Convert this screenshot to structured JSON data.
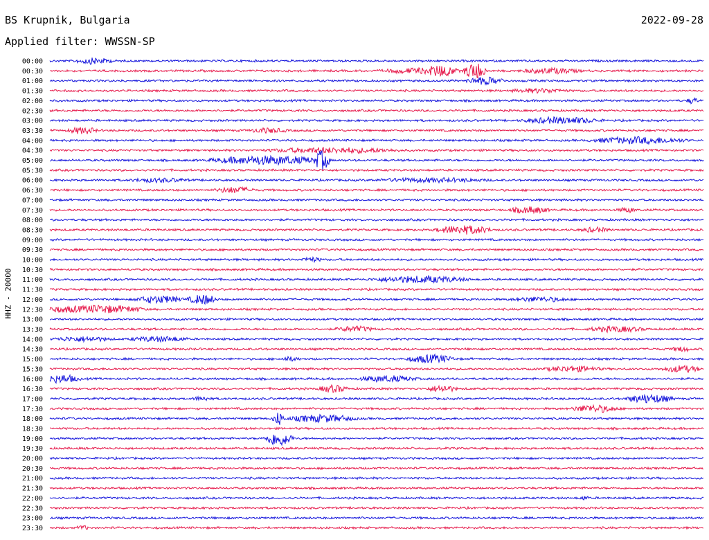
{
  "header": {
    "station": "BS Krupnik, Bulgaria",
    "date": "2022-09-28",
    "filter": "Applied filter: WWSSN-SP"
  },
  "chart_data": {
    "type": "line",
    "ylabel": "HHZ - 20000",
    "row_labels": [
      "00:00",
      "00:30",
      "01:00",
      "01:30",
      "02:00",
      "02:30",
      "03:00",
      "03:30",
      "04:00",
      "04:30",
      "05:00",
      "05:30",
      "06:00",
      "06:30",
      "07:00",
      "07:30",
      "08:00",
      "08:30",
      "09:00",
      "09:30",
      "10:00",
      "10:30",
      "11:00",
      "11:30",
      "12:00",
      "12:30",
      "13:00",
      "13:30",
      "14:00",
      "14:30",
      "15:00",
      "15:30",
      "16:00",
      "16:30",
      "17:00",
      "17:30",
      "18:00",
      "18:30",
      "19:00",
      "19:30",
      "20:00",
      "20:30",
      "21:00",
      "21:30",
      "22:00",
      "22:30",
      "23:00",
      "23:30"
    ],
    "colors": {
      "even": "#1414dc",
      "odd": "#e6194b"
    },
    "events": [
      {
        "row": 0,
        "minute": 2,
        "amp": 0.4,
        "dur": 2
      },
      {
        "row": 1,
        "minute": 17,
        "amp": 0.35,
        "dur": 4
      },
      {
        "row": 1,
        "minute": 18,
        "amp": 0.6,
        "dur": 1.5
      },
      {
        "row": 1,
        "minute": 19.5,
        "amp": 1.2,
        "dur": 1.2
      },
      {
        "row": 1,
        "minute": 23,
        "amp": 0.35,
        "dur": 3
      },
      {
        "row": 2,
        "minute": 20,
        "amp": 0.5,
        "dur": 2
      },
      {
        "row": 3,
        "minute": 22.5,
        "amp": 0.25,
        "dur": 3
      },
      {
        "row": 4,
        "minute": 29.5,
        "amp": 0.4,
        "dur": 0.6
      },
      {
        "row": 6,
        "minute": 23.5,
        "amp": 0.45,
        "dur": 4
      },
      {
        "row": 7,
        "minute": 1.5,
        "amp": 0.45,
        "dur": 1.5
      },
      {
        "row": 7,
        "minute": 10,
        "amp": 0.3,
        "dur": 2
      },
      {
        "row": 8,
        "minute": 27,
        "amp": 0.45,
        "dur": 5
      },
      {
        "row": 9,
        "minute": 13,
        "amp": 0.35,
        "dur": 7
      },
      {
        "row": 10,
        "minute": 10,
        "amp": 0.6,
        "dur": 6
      },
      {
        "row": 10,
        "minute": 12.5,
        "amp": 1.3,
        "dur": 0.8
      },
      {
        "row": 12,
        "minute": 5,
        "amp": 0.25,
        "dur": 3
      },
      {
        "row": 12,
        "minute": 17.5,
        "amp": 0.25,
        "dur": 6
      },
      {
        "row": 13,
        "minute": 8.5,
        "amp": 0.4,
        "dur": 2
      },
      {
        "row": 15,
        "minute": 22,
        "amp": 0.45,
        "dur": 2
      },
      {
        "row": 15,
        "minute": 26.5,
        "amp": 0.3,
        "dur": 1
      },
      {
        "row": 17,
        "minute": 19,
        "amp": 0.6,
        "dur": 3
      },
      {
        "row": 17,
        "minute": 25,
        "amp": 0.3,
        "dur": 1.5
      },
      {
        "row": 20,
        "minute": 12,
        "amp": 0.3,
        "dur": 1
      },
      {
        "row": 22,
        "minute": 17,
        "amp": 0.45,
        "dur": 5
      },
      {
        "row": 24,
        "minute": 5,
        "amp": 0.5,
        "dur": 2.5
      },
      {
        "row": 24,
        "minute": 7,
        "amp": 0.7,
        "dur": 1.5
      },
      {
        "row": 24,
        "minute": 22.5,
        "amp": 0.3,
        "dur": 3
      },
      {
        "row": 25,
        "minute": 1,
        "amp": 0.4,
        "dur": 4
      },
      {
        "row": 25,
        "minute": 3,
        "amp": 0.45,
        "dur": 3
      },
      {
        "row": 27,
        "minute": 14,
        "amp": 0.35,
        "dur": 2
      },
      {
        "row": 27,
        "minute": 26,
        "amp": 0.35,
        "dur": 3
      },
      {
        "row": 28,
        "minute": 1.5,
        "amp": 0.3,
        "dur": 3
      },
      {
        "row": 28,
        "minute": 5,
        "amp": 0.35,
        "dur": 3
      },
      {
        "row": 29,
        "minute": 29,
        "amp": 0.3,
        "dur": 1
      },
      {
        "row": 30,
        "minute": 11,
        "amp": 0.25,
        "dur": 1
      },
      {
        "row": 30,
        "minute": 17.5,
        "amp": 0.55,
        "dur": 2.5
      },
      {
        "row": 31,
        "minute": 24,
        "amp": 0.35,
        "dur": 3
      },
      {
        "row": 31,
        "minute": 29,
        "amp": 0.45,
        "dur": 2
      },
      {
        "row": 32,
        "minute": 0.5,
        "amp": 0.55,
        "dur": 2
      },
      {
        "row": 32,
        "minute": 15.5,
        "amp": 0.4,
        "dur": 3
      },
      {
        "row": 33,
        "minute": 13,
        "amp": 0.5,
        "dur": 1.5
      },
      {
        "row": 33,
        "minute": 18,
        "amp": 0.45,
        "dur": 1.5
      },
      {
        "row": 34,
        "minute": 7,
        "amp": 0.25,
        "dur": 1
      },
      {
        "row": 34,
        "minute": 27.5,
        "amp": 0.6,
        "dur": 2.5
      },
      {
        "row": 35,
        "minute": 25,
        "amp": 0.5,
        "dur": 2.5
      },
      {
        "row": 36,
        "minute": 10.5,
        "amp": 1.0,
        "dur": 0.6
      },
      {
        "row": 36,
        "minute": 12.5,
        "amp": 0.5,
        "dur": 3.5
      },
      {
        "row": 38,
        "minute": 10.5,
        "amp": 1.1,
        "dur": 1.5
      },
      {
        "row": 44,
        "minute": 24.5,
        "amp": 0.25,
        "dur": 0.5
      },
      {
        "row": 47,
        "minute": 1.5,
        "amp": 0.3,
        "dur": 0.6
      }
    ]
  }
}
